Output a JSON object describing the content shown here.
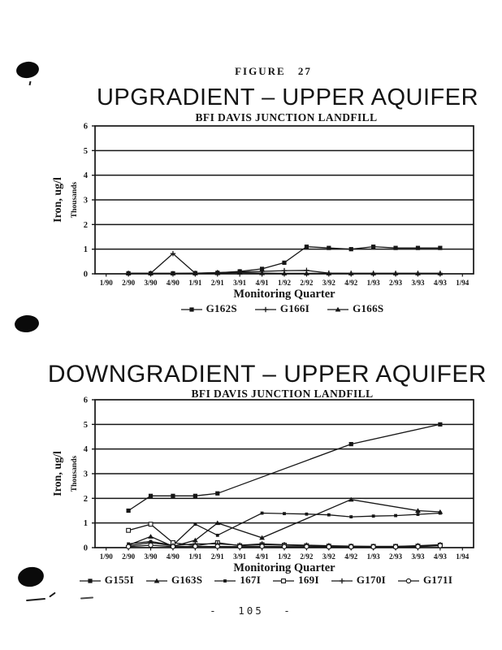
{
  "page": {
    "figure_label": "FIGURE 27",
    "footer": "- 105 -",
    "ink_color": "#161616",
    "paper_color": "#ffffff"
  },
  "icons": {
    "hole_punch": "hole-punch-mark",
    "markers": [
      "square-filled-icon",
      "plus-icon",
      "triangle-filled-icon",
      "square-open-icon",
      "circle-open-icon"
    ]
  },
  "chart_data": [
    {
      "type": "line",
      "title": "UPGRADIENT – UPPER AQUIFER",
      "subtitle": "BFI DAVIS JUNCTION LANDFILL",
      "xlabel": "Monitoring Quarter",
      "ylabel": "Iron, ug/l",
      "ylabel_units": "Thousands",
      "ylim": [
        0,
        6
      ],
      "yticks": [
        0,
        1,
        2,
        3,
        4,
        5,
        6
      ],
      "grid": true,
      "legend_position": "bottom",
      "categories": [
        "1/90",
        "2/90",
        "3/90",
        "4/90",
        "1/91",
        "2/91",
        "3/91",
        "4/91",
        "1/92",
        "2/92",
        "3/92",
        "4/92",
        "1/93",
        "2/93",
        "3/93",
        "4/93",
        "1/94"
      ],
      "series": [
        {
          "name": "G162S",
          "marker": "square-filled",
          "values": [
            null,
            0.02,
            0.02,
            0.02,
            0.03,
            0.04,
            0.1,
            0.2,
            0.45,
            1.1,
            1.05,
            1.0,
            1.1,
            1.05,
            1.05,
            1.05,
            null
          ]
        },
        {
          "name": "G166I",
          "marker": "plus",
          "values": [
            null,
            0.02,
            0.02,
            0.82,
            0.02,
            0.05,
            0.08,
            0.1,
            0.13,
            0.14,
            0.03,
            0.02,
            0.02,
            0.02,
            0.02,
            0.02,
            null
          ]
        },
        {
          "name": "G166S",
          "marker": "triangle-filled",
          "values": [
            null,
            0.02,
            0.02,
            0.02,
            0.02,
            0.03,
            0.05,
            0.03,
            0.02,
            0.02,
            0.02,
            0.02,
            0.02,
            0.02,
            0.02,
            0.02,
            null
          ]
        }
      ]
    },
    {
      "type": "line",
      "title": "DOWNGRADIENT – UPPER AQUIFER",
      "subtitle": "BFI DAVIS JUNCTION LANDFILL",
      "xlabel": "Monitoring Quarter",
      "ylabel": "Iron, ug/l",
      "ylabel_units": "Thousands",
      "ylim": [
        0,
        6
      ],
      "yticks": [
        0,
        1,
        2,
        3,
        4,
        5,
        6
      ],
      "grid": true,
      "legend_position": "bottom",
      "categories": [
        "1/90",
        "2/90",
        "3/90",
        "4/90",
        "1/91",
        "2/91",
        "3/91",
        "4/91",
        "1/92",
        "2/92",
        "3/92",
        "4/92",
        "1/93",
        "2/93",
        "3/93",
        "4/93",
        "1/94"
      ],
      "series": [
        {
          "name": "G155I",
          "marker": "square-filled",
          "values": [
            null,
            1.5,
            2.1,
            2.1,
            2.1,
            2.2,
            null,
            null,
            null,
            null,
            null,
            4.2,
            null,
            null,
            null,
            5.0,
            null
          ]
        },
        {
          "name": "G163S",
          "marker": "triangle-filled",
          "values": [
            null,
            0.1,
            0.45,
            0.05,
            0.3,
            1.0,
            null,
            0.4,
            null,
            null,
            null,
            1.95,
            null,
            null,
            1.5,
            1.45,
            null
          ]
        },
        {
          "name": "167I",
          "marker": "square-filled-small",
          "values": [
            null,
            0.15,
            0.25,
            0.1,
            0.95,
            0.5,
            null,
            1.4,
            1.38,
            1.36,
            1.33,
            1.25,
            1.28,
            1.3,
            1.35,
            1.4,
            null
          ]
        },
        {
          "name": "169I",
          "marker": "square-open",
          "values": [
            null,
            0.7,
            0.95,
            0.2,
            0.08,
            0.2,
            0.08,
            0.12,
            0.1,
            0.08,
            0.06,
            0.05,
            0.05,
            0.05,
            0.06,
            0.1,
            null
          ]
        },
        {
          "name": "G170I",
          "marker": "plus",
          "values": [
            null,
            0.08,
            0.2,
            0.08,
            0.15,
            0.15,
            0.1,
            0.15,
            0.12,
            0.1,
            0.08,
            0.06,
            0.05,
            0.05,
            0.08,
            0.12,
            null
          ]
        },
        {
          "name": "G171I",
          "marker": "circle-open",
          "values": [
            null,
            0.04,
            0.1,
            0.04,
            0.05,
            0.05,
            0.04,
            0.05,
            0.04,
            0.04,
            0.03,
            0.03,
            0.03,
            0.03,
            0.04,
            0.08,
            null
          ]
        }
      ]
    }
  ]
}
